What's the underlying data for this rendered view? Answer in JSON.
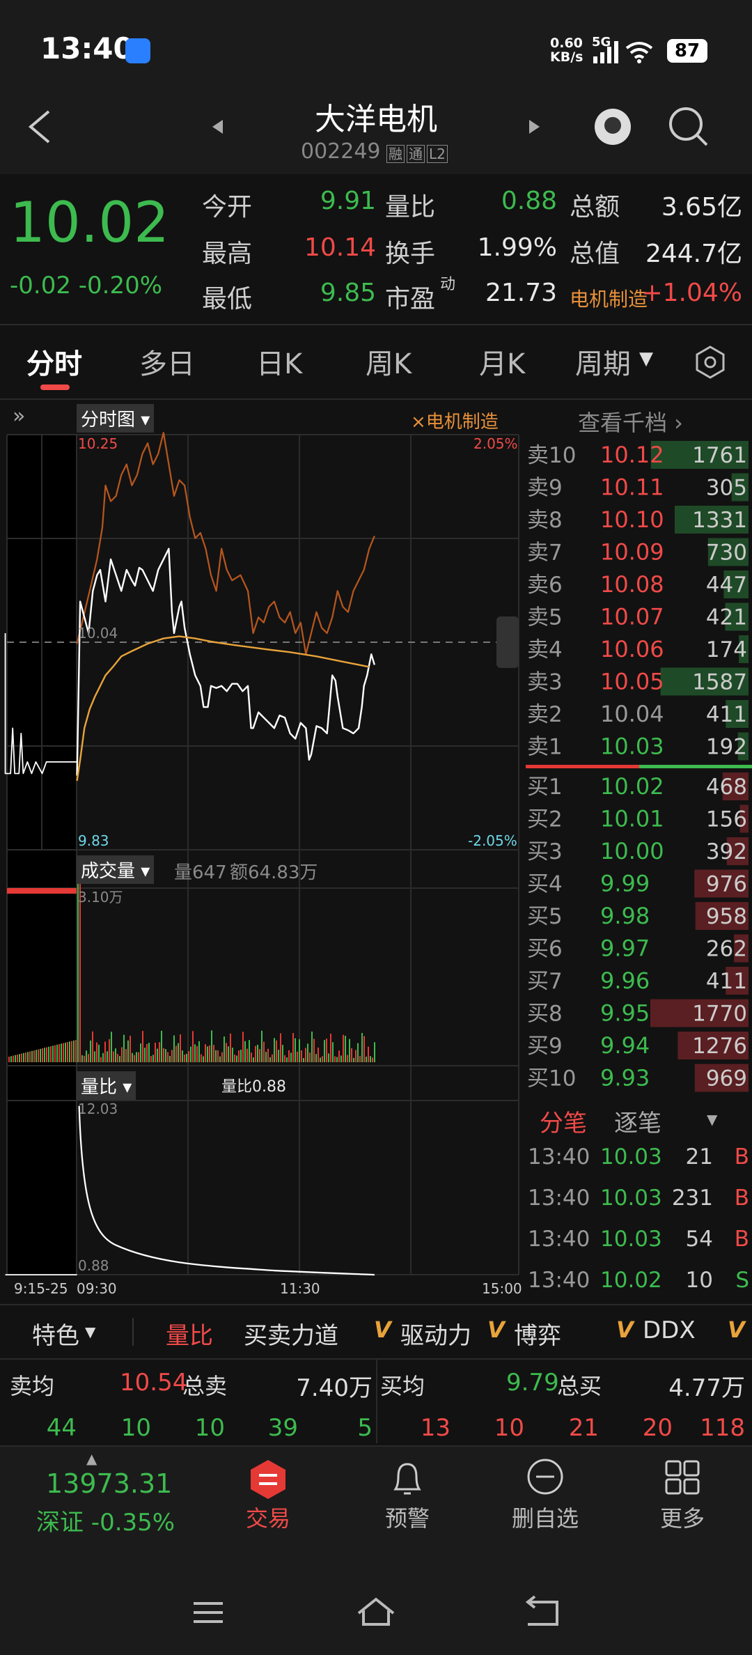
{
  "status_bar": {
    "time": "13:40",
    "speed": "0.60",
    "speed_unit": "KB/s",
    "network": "5G",
    "battery": "87"
  },
  "header": {
    "title": "大洋电机",
    "code": "002249",
    "badges": [
      "融",
      "通",
      "L2"
    ]
  },
  "quote": {
    "price": "10.02",
    "change": "-0.02 -0.20%",
    "fields": [
      [
        "今开",
        "9.91"
      ],
      [
        "最高",
        "10.14"
      ],
      [
        "最低",
        "9.85"
      ],
      [
        "量比",
        "0.88"
      ],
      [
        "换手",
        "1.99%"
      ],
      [
        "市盈",
        "21.73"
      ],
      [
        "总额",
        "3.65亿"
      ],
      [
        "总值",
        "244.7亿"
      ],
      [
        "电机制造",
        "+1.04%"
      ]
    ],
    "pe_suffix": "动"
  },
  "tabs": [
    "分时",
    "多日",
    "日K",
    "周K",
    "月K",
    "周期"
  ],
  "chart": {
    "selector": "分时图",
    "sector_tag": "×电机制造",
    "high": "10.25",
    "high_pct": "2.05%",
    "mid": "10.04",
    "low": "9.83",
    "low_pct": "-2.05%",
    "volume_selector": "成交量",
    "volume_info": "量647",
    "amount_info": "额64.83万",
    "volume_max": "3.10万",
    "ratio_selector": "量比",
    "ratio_info": "量比0.88",
    "ratio_max": "12.03",
    "ratio_min": "0.88",
    "x_labels": [
      "9:15-25",
      "09:30",
      "11:30",
      "15:00"
    ]
  },
  "order_book": {
    "link": "查看千档 ›",
    "asks": [
      {
        "label": "卖10",
        "price": "10.12",
        "volume": 1761
      },
      {
        "label": "卖9",
        "price": "10.11",
        "volume": 305
      },
      {
        "label": "卖8",
        "price": "10.10",
        "volume": 1331
      },
      {
        "label": "卖7",
        "price": "10.09",
        "volume": 730
      },
      {
        "label": "卖6",
        "price": "10.08",
        "volume": 447
      },
      {
        "label": "卖5",
        "price": "10.07",
        "volume": 421
      },
      {
        "label": "卖4",
        "price": "10.06",
        "volume": 174
      },
      {
        "label": "卖3",
        "price": "10.05",
        "volume": 1587
      },
      {
        "label": "卖2",
        "price": "10.04",
        "volume": 411
      },
      {
        "label": "卖1",
        "price": "10.03",
        "volume": 192
      }
    ],
    "bids": [
      {
        "label": "买1",
        "price": "10.02",
        "volume": 468
      },
      {
        "label": "买2",
        "price": "10.01",
        "volume": 156
      },
      {
        "label": "买3",
        "price": "10.00",
        "volume": 392
      },
      {
        "label": "买4",
        "price": "9.99",
        "volume": 976
      },
      {
        "label": "买5",
        "price": "9.98",
        "volume": 958
      },
      {
        "label": "买6",
        "price": "9.97",
        "volume": 262
      },
      {
        "label": "买7",
        "price": "9.96",
        "volume": 411
      },
      {
        "label": "买8",
        "price": "9.95",
        "volume": 1770
      },
      {
        "label": "买9",
        "price": "9.94",
        "volume": 1276
      },
      {
        "label": "买10",
        "price": "9.93",
        "volume": 969
      }
    ]
  },
  "trades": {
    "tabs": [
      "分笔",
      "逐笔"
    ],
    "rows": [
      [
        "13:40",
        "10.03",
        "21",
        "B"
      ],
      [
        "13:40",
        "10.03",
        "231",
        "B"
      ],
      [
        "13:40",
        "10.03",
        "54",
        "B"
      ],
      [
        "13:40",
        "10.02",
        "10",
        "S"
      ]
    ]
  },
  "feature_tabs": {
    "first": "特色",
    "items": [
      {
        "icon": "",
        "label": "量比"
      },
      {
        "icon": "",
        "label": "买卖力道"
      },
      {
        "icon": "V",
        "label": "驱动力"
      },
      {
        "icon": "V",
        "label": "博弈"
      },
      {
        "icon": "V",
        "label": "DDX"
      },
      {
        "icon": "V",
        "label": ""
      }
    ]
  },
  "summary": {
    "sell_avg_label": "卖均",
    "sell_avg": "10.54",
    "sell_total_label": "总卖",
    "sell_total": "7.40万",
    "buy_avg_label": "买均",
    "buy_avg": "9.79",
    "buy_total_label": "总买",
    "buy_total": "4.77万",
    "sell_counts": [
      "44",
      "10",
      "10",
      "39",
      "5"
    ],
    "buy_counts": [
      "13",
      "10",
      "21",
      "20",
      "118"
    ]
  },
  "bottom_nav": {
    "index_value": "13973.31",
    "index_name": "深证 -0.35%",
    "items": [
      "交易",
      "预警",
      "删自选",
      "更多"
    ]
  }
}
